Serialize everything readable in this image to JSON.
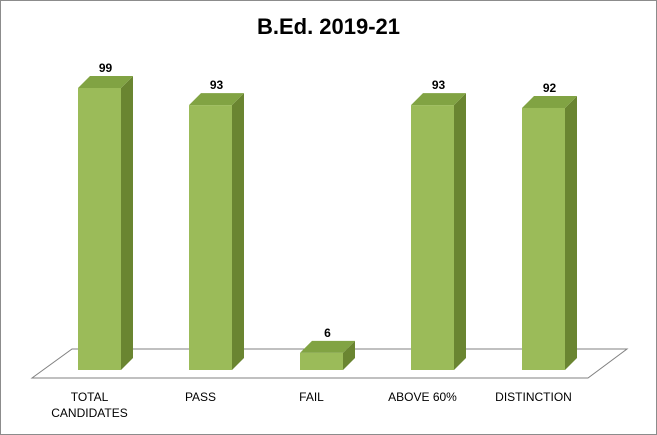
{
  "chart_data": {
    "type": "bar",
    "title": "B.Ed. 2019-21",
    "categories": [
      [
        "TOTAL",
        "CANDIDATES"
      ],
      [
        "PASS"
      ],
      [
        "FAIL"
      ],
      [
        "ABOVE 60%"
      ],
      [
        "DISTINCTION"
      ]
    ],
    "values": [
      99,
      93,
      6,
      93,
      92
    ],
    "ylim": [
      0,
      100
    ],
    "grid": false,
    "legend": "none",
    "colors": {
      "front": "#9bbb59",
      "side": "#6a8531",
      "top": "#81a343",
      "floor_stroke": "#808080"
    }
  }
}
